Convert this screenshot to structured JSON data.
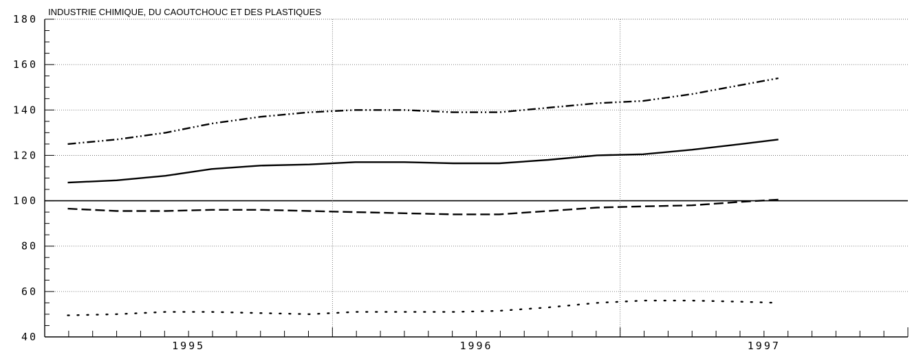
{
  "chart_data": {
    "type": "line",
    "title": "INDUSTRIE CHIMIQUE, DU CAOUTCHOUC ET DES PLASTIQUES",
    "xlabel": "",
    "ylabel": "",
    "x_tick_labels": [
      "1995",
      "1996",
      "1997"
    ],
    "y_tick_labels": [
      "40",
      "60",
      "80",
      "100",
      "120",
      "140",
      "160",
      "180"
    ],
    "ylim": [
      40,
      180
    ],
    "xlim": [
      1994.5,
      1997.5
    ],
    "reference_line": 100,
    "grid": true,
    "x": [
      1994.58,
      1994.75,
      1994.92,
      1995.08,
      1995.25,
      1995.42,
      1995.58,
      1995.75,
      1995.92,
      1996.08,
      1996.25,
      1996.42,
      1996.58,
      1996.75,
      1996.92,
      1997.05
    ],
    "series": [
      {
        "style": "dash-dot-dot",
        "color": "#000000",
        "values": [
          125,
          127,
          130,
          134,
          137,
          139,
          140,
          140,
          139,
          139,
          141,
          143,
          144,
          147,
          151,
          154
        ]
      },
      {
        "style": "solid",
        "color": "#000000",
        "values": [
          108,
          109,
          111,
          114,
          115.5,
          116,
          117,
          117,
          116.5,
          116.5,
          118,
          120,
          120.5,
          122.5,
          125,
          127
        ]
      },
      {
        "style": "dashed",
        "color": "#000000",
        "values": [
          96.5,
          95.5,
          95.5,
          96,
          96,
          95.5,
          95,
          94.5,
          94,
          94,
          95.5,
          97,
          97.5,
          98,
          99.5,
          100.5
        ]
      },
      {
        "style": "dotted",
        "color": "#000000",
        "values": [
          49.5,
          50,
          51,
          51,
          50.5,
          50,
          51,
          51,
          51,
          51.5,
          53,
          55,
          56,
          56,
          55.5,
          55
        ]
      }
    ]
  }
}
